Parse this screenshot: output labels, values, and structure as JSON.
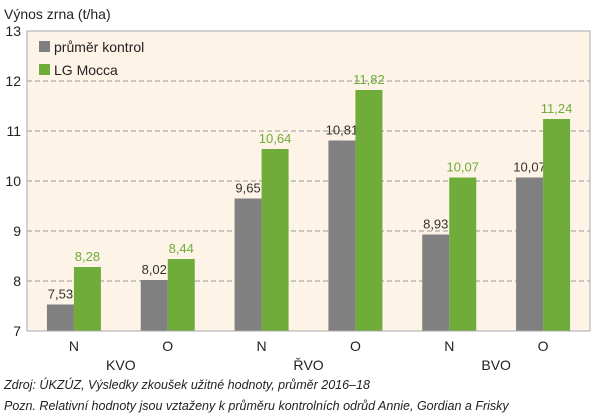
{
  "chart_data": {
    "type": "bar",
    "ylabel": "Výnos zrna (t/ha)",
    "ylim": [
      7,
      13
    ],
    "yticks": [
      7,
      8,
      9,
      10,
      11,
      12,
      13
    ],
    "grid": "horizontal dashed",
    "legend_position": "top-left",
    "categories": [
      "N",
      "O",
      "N",
      "O",
      "N",
      "O"
    ],
    "groups": [
      "KVO",
      "ŘVO",
      "BVO"
    ],
    "series": [
      {
        "name": "průměr kontrol",
        "color": "#808080",
        "values": [
          7.53,
          8.02,
          9.65,
          10.81,
          8.93,
          10.07
        ],
        "labels": [
          "7,53",
          "8,02",
          "9,65",
          "10,81",
          "8,93",
          "10,07"
        ],
        "label_color": "#333333"
      },
      {
        "name": "LG Mocca",
        "color": "#6fac3a",
        "values": [
          8.28,
          8.44,
          10.64,
          11.82,
          10.07,
          11.24
        ],
        "labels": [
          "8,28",
          "8,44",
          "10,64",
          "11,82",
          "10,07",
          "11,24"
        ],
        "label_color": "#6fac3a"
      }
    ],
    "background": "#fdf3e6"
  },
  "captions": {
    "source": "Zdroj: ÚKZÚZ, Výsledky zkoušek užitné hodnoty, průměr 2016–18",
    "note": "Pozn. Relativní hodnoty jsou vztaženy k průměru kontrolních odrůd Annie, Gordian a Frisky"
  }
}
